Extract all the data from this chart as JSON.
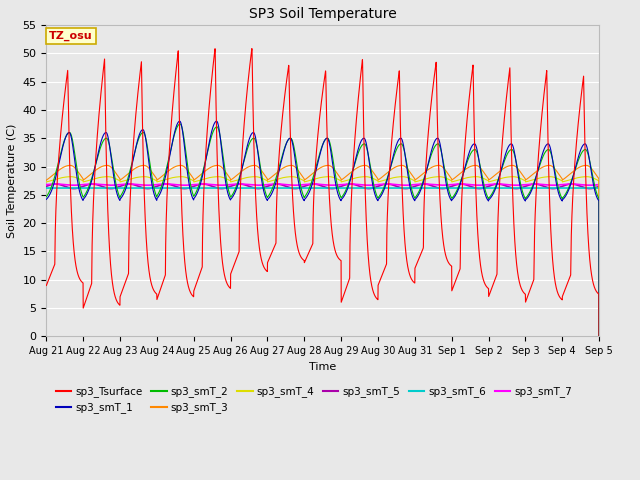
{
  "title": "SP3 Soil Temperature",
  "ylabel": "Soil Temperature (C)",
  "xlabel": "Time",
  "ylim": [
    0,
    55
  ],
  "background_color": "#e8e8e8",
  "annotation_text": "TZ_osu",
  "annotation_bg": "#ffffcc",
  "annotation_border": "#ccaa00",
  "series_colors": {
    "sp3_Tsurface": "#ff0000",
    "sp3_smT_1": "#0000bb",
    "sp3_smT_2": "#00bb00",
    "sp3_smT_3": "#ff8800",
    "sp3_smT_4": "#dddd00",
    "sp3_smT_5": "#aa00aa",
    "sp3_smT_6": "#00cccc",
    "sp3_smT_7": "#ff00ff"
  },
  "tick_labels": [
    "Aug 21",
    "Aug 22",
    "Aug 23",
    "Aug 24",
    "Aug 25",
    "Aug 26",
    "Aug 27",
    "Aug 28",
    "Aug 29",
    "Aug 30",
    "Aug 31",
    "Sep 1",
    "Sep 2",
    "Sep 3",
    "Sep 4",
    "Sep 5"
  ],
  "num_days": 15,
  "points_per_day": 240,
  "surface_peaks": [
    47,
    49,
    48.5,
    50.5,
    51,
    51,
    48,
    47,
    49,
    47,
    48.5,
    48,
    47.5,
    47,
    46
  ],
  "surface_mins": [
    9,
    5,
    7,
    6.5,
    8,
    11,
    13,
    13,
    6,
    9,
    12,
    8,
    7,
    6,
    7
  ],
  "smT1_peaks": [
    36,
    36,
    36.5,
    38,
    38,
    36,
    35,
    35,
    35,
    35,
    35,
    34,
    34,
    34,
    34
  ],
  "smT2_peaks": [
    36,
    35,
    36,
    37.5,
    37,
    35,
    35,
    35,
    34,
    34,
    34,
    33,
    33,
    33,
    33
  ],
  "smT1_min": 23.5,
  "smT2_min": 23.5,
  "smT3_base": 27.2,
  "smT3_amp": 3.0,
  "smT4_base": 27.0,
  "smT4_amp": 1.2,
  "smT5_base": 26.5,
  "smT6_base": 26.2,
  "smT7_base": 26.8
}
